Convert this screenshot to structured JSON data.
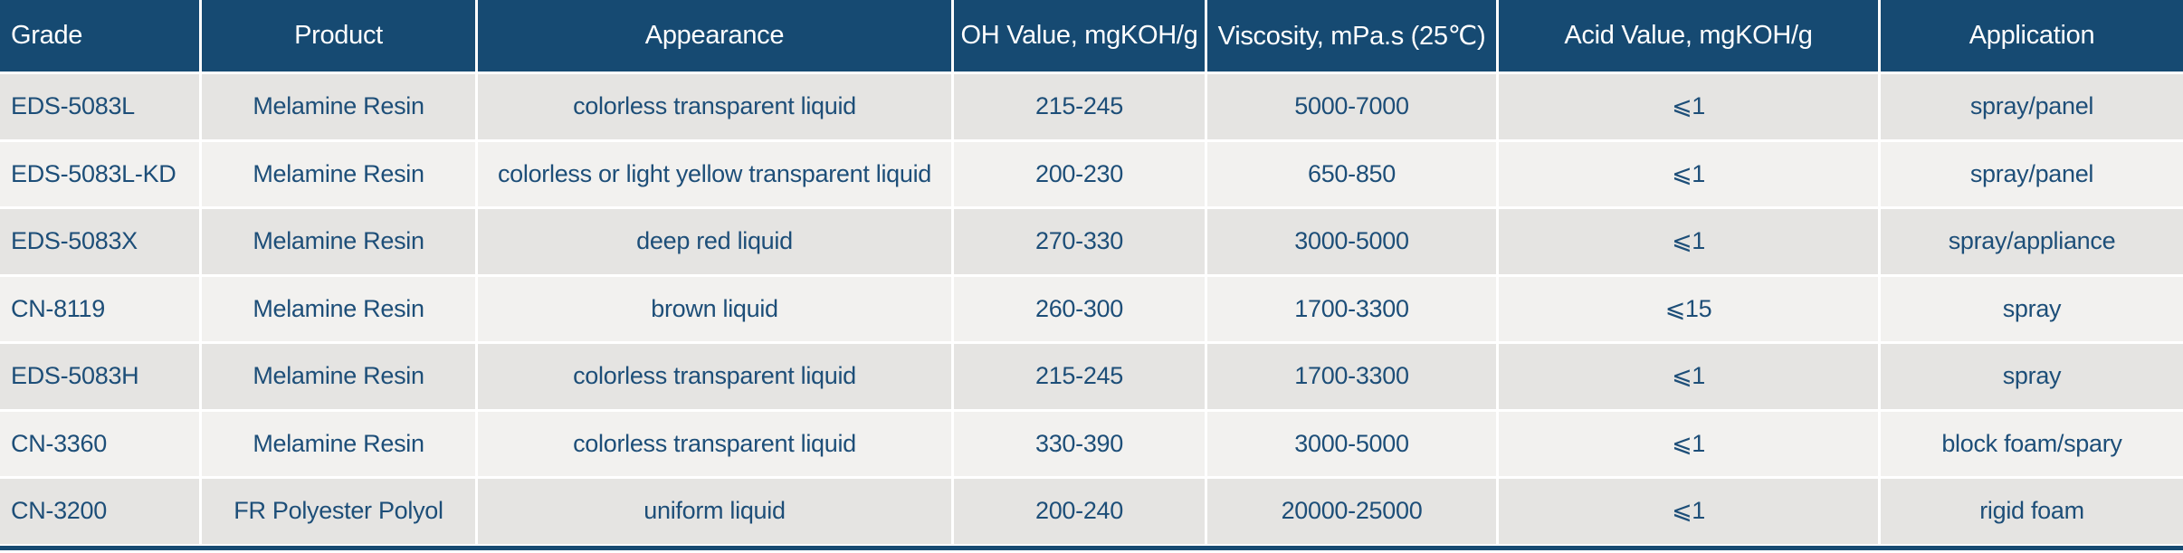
{
  "table": {
    "columns": [
      {
        "id": "grade",
        "label": "Grade"
      },
      {
        "id": "product",
        "label": "Product"
      },
      {
        "id": "appearance",
        "label": "Appearance"
      },
      {
        "id": "oh_value",
        "label": "OH Value, mgKOH/g"
      },
      {
        "id": "viscosity",
        "label": "Viscosity, mPa.s (25℃)"
      },
      {
        "id": "acid_value",
        "label": "Acid Value, mgKOH/g"
      },
      {
        "id": "application",
        "label": "Application"
      }
    ],
    "rows": [
      [
        "EDS-5083L",
        "Melamine Resin",
        "colorless transparent liquid",
        "215-245",
        "5000-7000",
        "⩽1",
        "spray/panel"
      ],
      [
        "EDS-5083L-KD",
        "Melamine Resin",
        "colorless or light yellow transparent liquid",
        "200-230",
        "650-850",
        "⩽1",
        "spray/panel"
      ],
      [
        "EDS-5083X",
        "Melamine Resin",
        "deep red liquid",
        "270-330",
        "3000-5000",
        "⩽1",
        "spray/appliance"
      ],
      [
        "CN-8119",
        "Melamine Resin",
        "brown liquid",
        "260-300",
        "1700-3300",
        "⩽15",
        "spray"
      ],
      [
        "EDS-5083H",
        "Melamine Resin",
        "colorless transparent liquid",
        "215-245",
        "1700-3300",
        "⩽1",
        "spray"
      ],
      [
        "CN-3360",
        "Melamine Resin",
        "colorless transparent liquid",
        "330-390",
        "3000-5000",
        "⩽1",
        "block foam/spary"
      ],
      [
        "CN-3200",
        "FR Polyester Polyol",
        "uniform liquid",
        "200-240",
        "20000-25000",
        "⩽1",
        "rigid foam"
      ]
    ]
  },
  "colors": {
    "header_bg": "#164A72",
    "header_text": "#FFFFFF",
    "row_odd_bg": "#E5E4E2",
    "row_even_bg": "#F2F1EF",
    "cell_text": "#1D4E78",
    "separator": "#FFFFFF",
    "bottom_border": "#164A72"
  }
}
